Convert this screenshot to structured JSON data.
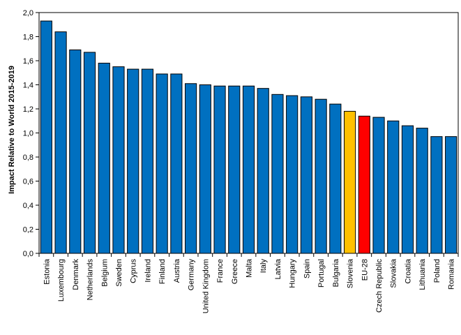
{
  "chart_data": {
    "type": "bar",
    "title": "",
    "xlabel": "",
    "ylabel": "Impact Relative to World 2015-2019",
    "ylim": [
      0,
      2.0
    ],
    "ytick_step": 0.2,
    "grid": false,
    "legend": "none",
    "default_color": "#0070C0",
    "categories": [
      "Estonia",
      "Luxembourg",
      "Denmark",
      "Netherlands",
      "Belgium",
      "Sweden",
      "Cyprus",
      "Ireland",
      "Finland",
      "Austria",
      "Germany",
      "United Kingdom",
      "France",
      "Greece",
      "Malta",
      "Italy",
      "Latvia",
      "Hungary",
      "Spain",
      "Portugal",
      "Bulgaria",
      "Slovenia",
      "EU-28",
      "Czech Republic",
      "Slovakia",
      "Croatia",
      "Lithuania",
      "Poland",
      "Romania"
    ],
    "values": [
      1.93,
      1.84,
      1.69,
      1.67,
      1.58,
      1.55,
      1.53,
      1.53,
      1.49,
      1.49,
      1.41,
      1.4,
      1.39,
      1.39,
      1.39,
      1.37,
      1.32,
      1.31,
      1.3,
      1.28,
      1.24,
      1.18,
      1.14,
      1.13,
      1.1,
      1.06,
      1.04,
      0.97,
      0.97
    ],
    "highlight_colors": {
      "Slovenia": "#FFC000",
      "EU-28": "#FF0000"
    }
  }
}
